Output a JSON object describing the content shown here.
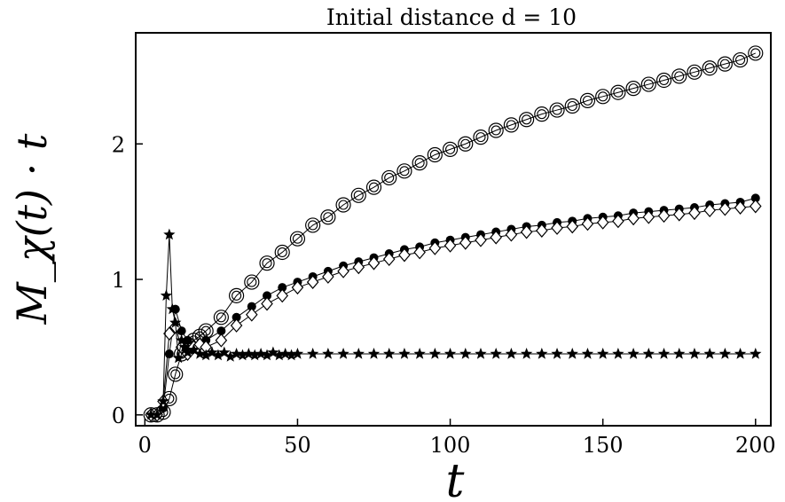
{
  "chart_data": {
    "type": "line",
    "title": "Initial distance d = 10",
    "xlabel": "t",
    "ylabel": "M_χ(t) · t",
    "xlim": [
      -3,
      205
    ],
    "ylim": [
      -0.08,
      2.82
    ],
    "x_ticks": [
      0,
      50,
      100,
      150,
      200
    ],
    "y_ticks": [
      0,
      1,
      2
    ],
    "grid": false,
    "legend": "none",
    "series": [
      {
        "marker": "double-circle",
        "x": [
          2,
          4,
          6,
          8,
          10,
          12,
          14,
          16,
          18,
          20,
          25,
          30,
          35,
          40,
          45,
          50,
          55,
          60,
          65,
          70,
          75,
          80,
          85,
          90,
          95,
          100,
          105,
          110,
          115,
          120,
          125,
          130,
          135,
          140,
          145,
          150,
          155,
          160,
          165,
          170,
          175,
          180,
          185,
          190,
          195,
          200
        ],
        "y": [
          0,
          0,
          0.02,
          0.12,
          0.3,
          0.45,
          0.52,
          0.55,
          0.58,
          0.62,
          0.72,
          0.88,
          0.98,
          1.12,
          1.2,
          1.3,
          1.4,
          1.46,
          1.55,
          1.62,
          1.68,
          1.75,
          1.8,
          1.86,
          1.92,
          1.96,
          2.0,
          2.05,
          2.1,
          2.14,
          2.18,
          2.22,
          2.25,
          2.28,
          2.32,
          2.35,
          2.38,
          2.41,
          2.44,
          2.47,
          2.5,
          2.53,
          2.56,
          2.59,
          2.62,
          2.67
        ]
      },
      {
        "marker": "filled-circle",
        "x": [
          2,
          4,
          6,
          8,
          10,
          12,
          14,
          16,
          18,
          20,
          25,
          30,
          35,
          40,
          45,
          50,
          55,
          60,
          65,
          70,
          75,
          80,
          85,
          90,
          95,
          100,
          105,
          110,
          115,
          120,
          125,
          130,
          135,
          140,
          145,
          150,
          155,
          160,
          165,
          170,
          175,
          180,
          185,
          190,
          195,
          200
        ],
        "y": [
          0,
          0,
          0.05,
          0.45,
          0.78,
          0.62,
          0.55,
          0.5,
          0.52,
          0.55,
          0.62,
          0.72,
          0.8,
          0.88,
          0.94,
          0.98,
          1.02,
          1.06,
          1.1,
          1.13,
          1.16,
          1.19,
          1.22,
          1.24,
          1.27,
          1.29,
          1.31,
          1.33,
          1.35,
          1.37,
          1.39,
          1.4,
          1.42,
          1.43,
          1.45,
          1.46,
          1.47,
          1.49,
          1.5,
          1.51,
          1.52,
          1.53,
          1.55,
          1.56,
          1.57,
          1.6
        ]
      },
      {
        "marker": "diamond",
        "x": [
          2,
          4,
          6,
          8,
          10,
          12,
          14,
          16,
          18,
          20,
          25,
          30,
          35,
          40,
          45,
          50,
          55,
          60,
          65,
          70,
          75,
          80,
          85,
          90,
          95,
          100,
          105,
          110,
          115,
          120,
          125,
          130,
          135,
          140,
          145,
          150,
          155,
          160,
          165,
          170,
          175,
          180,
          185,
          190,
          195,
          200
        ],
        "y": [
          0,
          0,
          0.1,
          0.6,
          0.65,
          0.5,
          0.45,
          0.5,
          0.52,
          0.5,
          0.55,
          0.66,
          0.74,
          0.82,
          0.88,
          0.94,
          0.98,
          1.02,
          1.06,
          1.09,
          1.12,
          1.15,
          1.18,
          1.2,
          1.23,
          1.25,
          1.27,
          1.29,
          1.31,
          1.33,
          1.35,
          1.36,
          1.38,
          1.39,
          1.41,
          1.42,
          1.43,
          1.45,
          1.46,
          1.47,
          1.48,
          1.49,
          1.51,
          1.52,
          1.53,
          1.54
        ]
      },
      {
        "marker": "star",
        "x": [
          2,
          4,
          6,
          7,
          8,
          9,
          10,
          11,
          12,
          13,
          14,
          16,
          18,
          20,
          22,
          24,
          26,
          28,
          30,
          32,
          34,
          36,
          38,
          40,
          42,
          44,
          46,
          48,
          50,
          55,
          60,
          65,
          70,
          75,
          80,
          85,
          90,
          95,
          100,
          105,
          110,
          115,
          120,
          125,
          130,
          135,
          140,
          145,
          150,
          155,
          160,
          165,
          170,
          175,
          180,
          185,
          190,
          195,
          200
        ],
        "y": [
          0,
          0,
          0.1,
          0.88,
          1.33,
          0.78,
          0.68,
          0.42,
          0.55,
          0.5,
          0.46,
          0.48,
          0.45,
          0.44,
          0.46,
          0.44,
          0.46,
          0.43,
          0.45,
          0.44,
          0.45,
          0.44,
          0.45,
          0.44,
          0.46,
          0.44,
          0.45,
          0.44,
          0.45,
          0.45,
          0.45,
          0.45,
          0.45,
          0.45,
          0.45,
          0.45,
          0.45,
          0.45,
          0.45,
          0.45,
          0.45,
          0.45,
          0.45,
          0.45,
          0.45,
          0.45,
          0.45,
          0.45,
          0.45,
          0.45,
          0.45,
          0.45,
          0.45,
          0.45,
          0.45,
          0.45,
          0.45,
          0.45,
          0.45
        ]
      }
    ]
  }
}
